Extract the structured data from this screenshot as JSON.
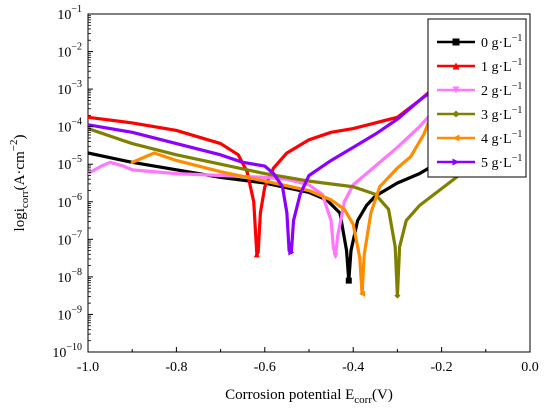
{
  "chart_data": {
    "type": "line",
    "xlabel": "Corrosion potential E",
    "xlabel_sub": "corr",
    "xlabel_unit": "(V)",
    "ylabel": "logi",
    "ylabel_sub": "corr",
    "ylabel_unit_pre": "(A·cm",
    "ylabel_unit_sup": "−2",
    "ylabel_unit_post": ")",
    "xlim": [
      -1.0,
      0.0
    ],
    "ylim_log10": [
      -10,
      -1
    ],
    "y_scale": "log",
    "x_ticks": [
      "-1.0",
      "-0.8",
      "-0.6",
      "-0.4",
      "-0.2",
      "0.0"
    ],
    "x_tick_values": [
      -1.0,
      -0.8,
      -0.6,
      -0.4,
      -0.2,
      0.0
    ],
    "y_tick_exponents": [
      -10,
      -9,
      -8,
      -7,
      -6,
      -5,
      -4,
      -3,
      -2,
      -1
    ],
    "y_tick_base": "10",
    "grid": false,
    "legend_position": "top-right",
    "series": [
      {
        "name": "0 g·L",
        "name_sup": "−1",
        "color": "#000000",
        "marker": "square",
        "points": [
          [
            -1.0,
            -4.7
          ],
          [
            -0.9,
            -4.95
          ],
          [
            -0.8,
            -5.15
          ],
          [
            -0.7,
            -5.35
          ],
          [
            -0.6,
            -5.5
          ],
          [
            -0.5,
            -5.75
          ],
          [
            -0.46,
            -5.95
          ],
          [
            -0.43,
            -6.3
          ],
          [
            -0.415,
            -7.3
          ],
          [
            -0.41,
            -8.1
          ],
          [
            -0.405,
            -7.3
          ],
          [
            -0.39,
            -6.5
          ],
          [
            -0.37,
            -6.1
          ],
          [
            -0.35,
            -5.85
          ],
          [
            -0.3,
            -5.5
          ],
          [
            -0.25,
            -5.25
          ],
          [
            -0.2,
            -4.9
          ],
          [
            -0.15,
            -4.5
          ]
        ]
      },
      {
        "name": "1 g·L",
        "name_sup": "−1",
        "color": "#ff0000",
        "marker": "triangle-up",
        "points": [
          [
            -1.0,
            -3.75
          ],
          [
            -0.9,
            -3.9
          ],
          [
            -0.8,
            -4.1
          ],
          [
            -0.7,
            -4.45
          ],
          [
            -0.66,
            -4.75
          ],
          [
            -0.64,
            -5.2
          ],
          [
            -0.625,
            -6.0
          ],
          [
            -0.618,
            -7.4
          ],
          [
            -0.615,
            -7.35
          ],
          [
            -0.61,
            -6.3
          ],
          [
            -0.6,
            -5.6
          ],
          [
            -0.58,
            -5.1
          ],
          [
            -0.55,
            -4.7
          ],
          [
            -0.5,
            -4.35
          ],
          [
            -0.45,
            -4.15
          ],
          [
            -0.4,
            -4.05
          ],
          [
            -0.35,
            -3.9
          ],
          [
            -0.3,
            -3.75
          ],
          [
            -0.25,
            -3.3
          ],
          [
            -0.22,
            -3.0
          ],
          [
            -0.2,
            -2.75
          ]
        ]
      },
      {
        "name": "2 g·L",
        "name_sup": "−1",
        "color": "#ff77ff",
        "marker": "triangle-down",
        "points": [
          [
            -1.0,
            -5.25
          ],
          [
            -0.97,
            -5.05
          ],
          [
            -0.95,
            -4.95
          ],
          [
            -0.92,
            -5.05
          ],
          [
            -0.9,
            -5.15
          ],
          [
            -0.85,
            -5.2
          ],
          [
            -0.8,
            -5.25
          ],
          [
            -0.7,
            -5.3
          ],
          [
            -0.6,
            -5.35
          ],
          [
            -0.55,
            -5.4
          ],
          [
            -0.5,
            -5.55
          ],
          [
            -0.47,
            -5.8
          ],
          [
            -0.45,
            -6.5
          ],
          [
            -0.445,
            -7.2
          ],
          [
            -0.44,
            -7.45
          ],
          [
            -0.435,
            -6.9
          ],
          [
            -0.42,
            -6.0
          ],
          [
            -0.4,
            -5.55
          ],
          [
            -0.35,
            -5.05
          ],
          [
            -0.3,
            -4.55
          ],
          [
            -0.25,
            -4.0
          ],
          [
            -0.2,
            -3.35
          ],
          [
            -0.18,
            -3.0
          ]
        ]
      },
      {
        "name": "3 g·L",
        "name_sup": "−1",
        "color": "#808000",
        "marker": "diamond",
        "points": [
          [
            -1.0,
            -4.05
          ],
          [
            -0.9,
            -4.45
          ],
          [
            -0.8,
            -4.75
          ],
          [
            -0.7,
            -5.0
          ],
          [
            -0.6,
            -5.25
          ],
          [
            -0.5,
            -5.45
          ],
          [
            -0.4,
            -5.6
          ],
          [
            -0.35,
            -5.8
          ],
          [
            -0.32,
            -6.2
          ],
          [
            -0.305,
            -7.2
          ],
          [
            -0.3,
            -8.5
          ],
          [
            -0.295,
            -7.2
          ],
          [
            -0.28,
            -6.5
          ],
          [
            -0.25,
            -6.1
          ],
          [
            -0.2,
            -5.65
          ],
          [
            -0.15,
            -5.2
          ],
          [
            -0.1,
            -4.9
          ]
        ]
      },
      {
        "name": "4 g·L",
        "name_sup": "−1",
        "color": "#ff8c00",
        "marker": "triangle-left",
        "points": [
          [
            -0.9,
            -4.95
          ],
          [
            -0.85,
            -4.7
          ],
          [
            -0.8,
            -4.9
          ],
          [
            -0.7,
            -5.2
          ],
          [
            -0.6,
            -5.45
          ],
          [
            -0.5,
            -5.7
          ],
          [
            -0.45,
            -5.95
          ],
          [
            -0.42,
            -6.2
          ],
          [
            -0.4,
            -6.6
          ],
          [
            -0.385,
            -7.5
          ],
          [
            -0.38,
            -8.45
          ],
          [
            -0.375,
            -7.4
          ],
          [
            -0.36,
            -6.3
          ],
          [
            -0.34,
            -5.6
          ],
          [
            -0.3,
            -5.1
          ],
          [
            -0.27,
            -4.8
          ],
          [
            -0.24,
            -4.2
          ],
          [
            -0.22,
            -3.6
          ],
          [
            -0.2,
            -3.05
          ]
        ]
      },
      {
        "name": "5 g·L",
        "name_sup": "−1",
        "color": "#8b00ff",
        "marker": "triangle-right",
        "points": [
          [
            -1.0,
            -3.95
          ],
          [
            -0.9,
            -4.15
          ],
          [
            -0.8,
            -4.45
          ],
          [
            -0.7,
            -4.75
          ],
          [
            -0.65,
            -4.95
          ],
          [
            -0.6,
            -5.05
          ],
          [
            -0.58,
            -5.25
          ],
          [
            -0.56,
            -5.6
          ],
          [
            -0.55,
            -6.3
          ],
          [
            -0.545,
            -7.3
          ],
          [
            -0.54,
            -7.35
          ],
          [
            -0.535,
            -6.5
          ],
          [
            -0.52,
            -5.8
          ],
          [
            -0.5,
            -5.3
          ],
          [
            -0.45,
            -4.9
          ],
          [
            -0.4,
            -4.55
          ],
          [
            -0.35,
            -4.2
          ],
          [
            -0.3,
            -3.8
          ],
          [
            -0.25,
            -3.3
          ],
          [
            -0.2,
            -2.85
          ]
        ]
      }
    ]
  }
}
